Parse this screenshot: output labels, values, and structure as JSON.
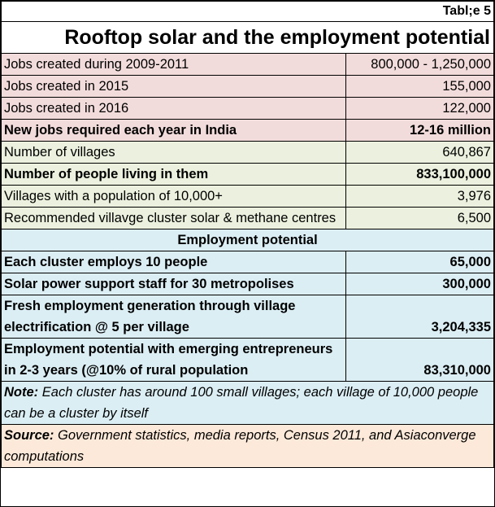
{
  "table_tag": "Tabl;e 5",
  "title": "Rooftop solar and the employment potential",
  "section1": [
    {
      "label": "Jobs created during 2009-2011",
      "value": "800,000 - 1,250,000",
      "bold": false
    },
    {
      "label": "Jobs created in 2015",
      "value": "155,000",
      "bold": false
    },
    {
      "label": "Jobs created in 2016",
      "value": "122,000",
      "bold": false
    },
    {
      "label": "New jobs required each year  in India",
      "value": "12-16 million",
      "bold": true
    }
  ],
  "section2": [
    {
      "label": "Number of villages",
      "value": "640,867",
      "bold": false
    },
    {
      "label": "Number of people living in them",
      "value": "833,100,000",
      "bold": true
    },
    {
      "label": "Villages with a population of 10,000+",
      "value": "3,976",
      "bold": false
    },
    {
      "label": "Recommended villavge cluster solar & methane centres",
      "value": "6,500",
      "bold": false
    }
  ],
  "employment_header": "Employment potential",
  "section3": [
    {
      "label": "Each cluster employs 10 people",
      "value": "65,000"
    },
    {
      "label": "Solar power support staff for 30 metropolises",
      "value": "300,000"
    },
    {
      "label": "Fresh employment generation through village electrification @ 5 per village",
      "value": "3,204,335"
    },
    {
      "label": "Employment potential with emerging entrepreneurs  in 2-3 years (@10% of rural population",
      "value": "83,310,000"
    }
  ],
  "note": {
    "label": "Note:",
    "text": " Each cluster has around 100 small villages; each village of 10,000 people can be a cluster by itself"
  },
  "source": {
    "label": "Source:",
    "text": " Government statistics, media reports, Census 2011, and Asiaconverge computations"
  }
}
